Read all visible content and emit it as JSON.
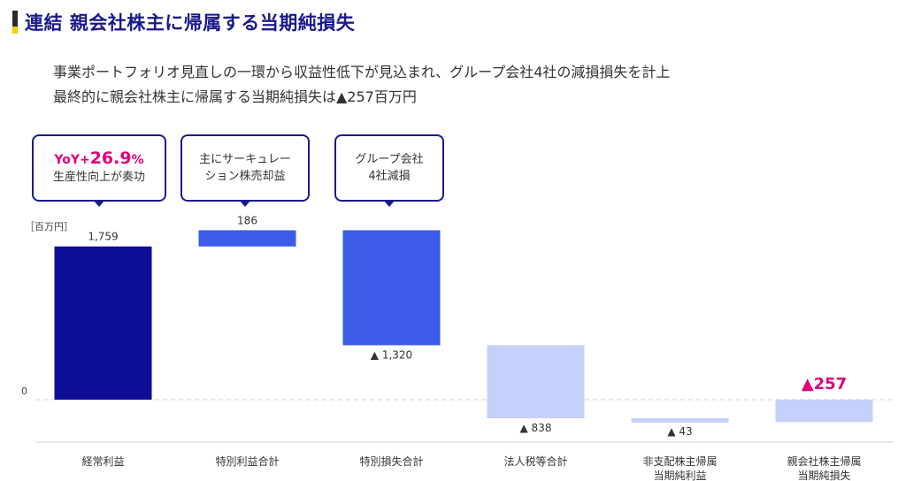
{
  "header": {
    "title": "連結 親会社株主に帰属する当期純損失"
  },
  "summary": {
    "line1": "事業ポートフォリオ見直しの一環から収益性低下が見込まれ、グループ会社4社の減損損失を計上",
    "line2": "最終的に親会社株主に帰属する当期純損失は▲257百万円"
  },
  "callouts": {
    "ordinary": {
      "prefix": "YoY+",
      "value": "26.9",
      "suffix": "%",
      "line2": "生産性向上が奏功"
    },
    "gain": {
      "line1": "主にサーキュレー",
      "line2": "ション株売却益"
    },
    "loss": {
      "line1": "グループ会社",
      "line2": "4社減損"
    }
  },
  "colors": {
    "title": "#1a1a8c",
    "accent": "#e0007a",
    "dark_bar": "#0d0d96",
    "mid_bar": "#3b5be8",
    "light_bar": "#c5d0fb"
  },
  "chart_data": {
    "type": "bar",
    "subtype": "waterfall",
    "unit_label": "［百万円］",
    "zero_label": "0",
    "categories": [
      "経常利益",
      "特別利益合計",
      "特別損失合計",
      "法人税等合計",
      "非支配株主帰属\n当期純利益",
      "親会社株主帰属\n当期純損失"
    ],
    "steps": [
      {
        "value": 1759,
        "start": 0,
        "end": 1759,
        "label": "1,759",
        "color": "dark_bar"
      },
      {
        "value": 186,
        "start": 1759,
        "end": 1945,
        "label": "186",
        "color": "mid_bar"
      },
      {
        "value": -1320,
        "start": 1945,
        "end": 625,
        "label": "▲ 1,320",
        "color": "mid_bar"
      },
      {
        "value": -838,
        "start": 625,
        "end": -213,
        "label": "▲ 838",
        "color": "light_bar"
      },
      {
        "value": -43,
        "start": -213,
        "end": -256,
        "label": "▲ 43",
        "color": "light_bar"
      },
      {
        "value": -257,
        "start": 0,
        "end": -257,
        "label": "▲257",
        "color": "light_bar",
        "highlight": true
      }
    ],
    "ylim": [
      -500,
      2000
    ],
    "zero_line": "dashed",
    "grid": false,
    "legend": "none"
  }
}
